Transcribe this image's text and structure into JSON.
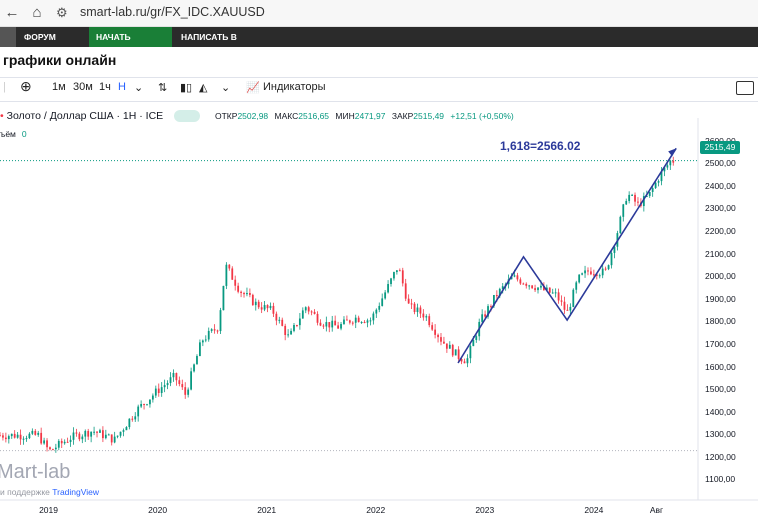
{
  "browser": {
    "url": "smart-lab.ru/gr/FX_IDC.XAUUSD",
    "back_icon": "arrow-left-icon",
    "reload_icon": "reload-icon",
    "home_icon": "home-icon"
  },
  "nav": {
    "forum": "ФОРУМ ЗОЛОТО",
    "trade": "НАЧАТЬ ТОРГОВАТЬ",
    "blog": "НАПИСАТЬ В БЛОГ"
  },
  "page_title": "графики онлайн",
  "toolbar": {
    "intervals": [
      "1м",
      "30м",
      "1ч",
      "H"
    ],
    "indicators": "Индикаторы"
  },
  "legend": {
    "symbol": "Золото / Доллар США · 1H · ICE",
    "open_label": "ОТКР",
    "open": "2502,98",
    "high_label": "МАКС",
    "high": "2516,65",
    "low_label": "МИН",
    "low": "2471,97",
    "close_label": "ЗАКР",
    "close": "2515,49",
    "change": "+12,51 (+0,50%)",
    "volume_label": "ъём",
    "volume": "0"
  },
  "price_tag": "2515,49",
  "annotation": "1,618=2566.02",
  "logo": "Mart-lab",
  "powered_by": "и поддержке",
  "powered_brand": "TradingView",
  "colors": {
    "up": "#089981",
    "down": "#f23645",
    "pattern_line": "#2c3a9a",
    "nav_green": "#1a7f37"
  },
  "chart_data": {
    "type": "candlestick",
    "title": "Золото / Доллар США · 1H · ICE",
    "y_ticks": [
      "2600,00",
      "2500,00",
      "2400,00",
      "2300,00",
      "2200,00",
      "2100,00",
      "2000,00",
      "1900,00",
      "1800,00",
      "1700,00",
      "1600,00",
      "1500,00",
      "1400,00",
      "1300,00",
      "1200,00",
      "1100,00"
    ],
    "x_ticks": [
      "2019",
      "2020",
      "2021",
      "2022",
      "2023",
      "2024",
      "Авг"
    ],
    "ylim": [
      1080,
      2660
    ],
    "x": [
      "2018.9",
      "2019.0",
      "2019.2",
      "2019.4",
      "2019.6",
      "2019.8",
      "2020.0",
      "2020.15",
      "2020.25",
      "2020.4",
      "2020.55",
      "2020.62",
      "2020.75",
      "2020.9",
      "2021.05",
      "2021.2",
      "2021.35",
      "2021.5",
      "2021.65",
      "2021.8",
      "2021.95",
      "2022.1",
      "2022.2",
      "2022.3",
      "2022.45",
      "2022.6",
      "2022.75",
      "2022.83",
      "2022.95",
      "2023.1",
      "2023.25",
      "2023.35",
      "2023.5",
      "2023.65",
      "2023.75",
      "2023.85",
      "2023.95",
      "2024.1",
      "2024.2",
      "2024.3",
      "2024.4",
      "2024.5",
      "2024.6",
      "2024.7"
    ],
    "values": [
      1300,
      1230,
      1290,
      1320,
      1280,
      1410,
      1500,
      1560,
      1480,
      1720,
      1780,
      2050,
      1940,
      1880,
      1850,
      1730,
      1870,
      1800,
      1780,
      1820,
      1810,
      1950,
      2050,
      1870,
      1830,
      1720,
      1650,
      1630,
      1800,
      1920,
      2000,
      1980,
      1950,
      1920,
      1840,
      1990,
      2030,
      2020,
      2180,
      2370,
      2320,
      2360,
      2450,
      2515
    ],
    "pattern_line": {
      "points": [
        [
          "2022.75",
          1620
        ],
        [
          "2023.35",
          2090
        ],
        [
          "2023.75",
          1810
        ],
        [
          "2024.75",
          2570
        ]
      ]
    },
    "level_lines": [
      2515.49,
      1232
    ]
  }
}
